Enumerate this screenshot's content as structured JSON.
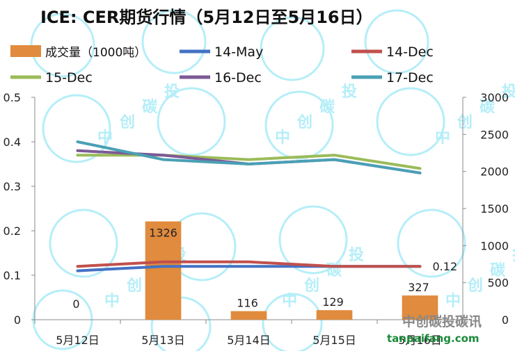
{
  "chart_data": {
    "type": "bar+line",
    "title": "ICE: CER期货行情（5月12日至5月16日）",
    "categories": [
      "5月12日",
      "5月13日",
      "5月14日",
      "5月15日",
      "5月16日"
    ],
    "bars": {
      "name": "成交量（1000吨）",
      "axis": "right",
      "values": [
        0,
        1326,
        116,
        129,
        327
      ],
      "labels": [
        "0",
        "1326",
        "116",
        "129",
        "327"
      ],
      "color": "#e08b3e"
    },
    "series": [
      {
        "name": "14-May",
        "values": [
          0.11,
          0.12,
          0.12,
          0.12,
          0.12
        ],
        "color": "#4472c4",
        "axis": "left"
      },
      {
        "name": "14-Dec",
        "values": [
          0.12,
          0.13,
          0.13,
          0.12,
          0.12
        ],
        "color": "#c0504d",
        "axis": "left",
        "end_label": "0.12"
      },
      {
        "name": "15-Dec",
        "values": [
          0.37,
          0.37,
          0.36,
          0.37,
          0.34
        ],
        "color": "#9bbb59",
        "axis": "left"
      },
      {
        "name": "16-Dec",
        "values": [
          0.38,
          0.37,
          0.35,
          0.36,
          0.33
        ],
        "color": "#7c5a96",
        "axis": "left"
      },
      {
        "name": "17-Dec",
        "values": [
          0.4,
          0.36,
          0.35,
          0.36,
          0.33
        ],
        "color": "#4aa0b5",
        "axis": "left"
      }
    ],
    "ylim_left": [
      0,
      0.5
    ],
    "yticks_left": [
      "0",
      "0.1",
      "0.2",
      "0.3",
      "0.4",
      "0.5"
    ],
    "ylim_right": [
      0,
      3000
    ],
    "yticks_right": [
      "0",
      "500",
      "1000",
      "1500",
      "2000",
      "2500",
      "3000"
    ],
    "grid": false,
    "legend": "top"
  },
  "watermark": {
    "chars": [
      "中",
      "创",
      "碳",
      "投"
    ],
    "brand": "中创碳投碳讯",
    "url": "tanpaifang.com"
  }
}
